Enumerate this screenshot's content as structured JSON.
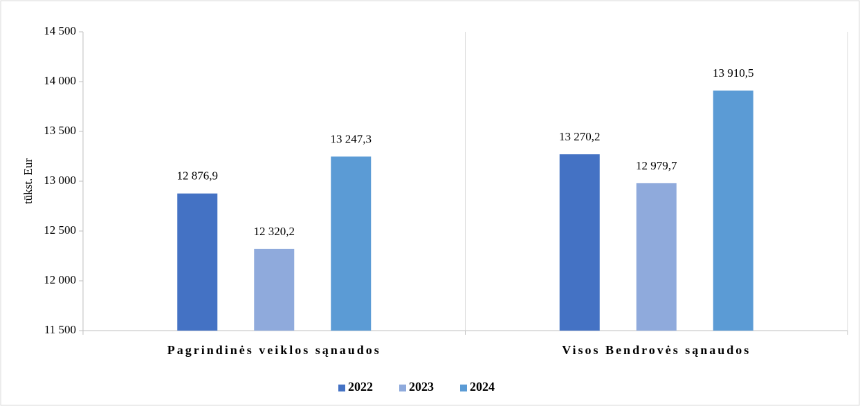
{
  "chart_data": {
    "type": "bar",
    "y_label": "tūkst. Eur",
    "categories": [
      "Pagrindinės veiklos sąnaudos",
      "Visos Bendrovės sąnaudos"
    ],
    "series": [
      {
        "name": "2022",
        "color": "#4472c4",
        "values": [
          12876.9,
          13270.2
        ],
        "value_labels": [
          "12 876,9",
          "13 270,2"
        ]
      },
      {
        "name": "2023",
        "color": "#8faadc",
        "values": [
          12320.2,
          12979.7
        ],
        "value_labels": [
          "12 320,2",
          "12 979,7"
        ]
      },
      {
        "name": "2024",
        "color": "#5b9bd5",
        "values": [
          13247.3,
          13910.5
        ],
        "value_labels": [
          "13 247,3",
          "13 910,5"
        ]
      }
    ],
    "ylim": [
      11500,
      14500
    ],
    "yticks": [
      {
        "value": 11500,
        "label": "11 500"
      },
      {
        "value": 12000,
        "label": "12 000"
      },
      {
        "value": 12500,
        "label": "12 500"
      },
      {
        "value": 13000,
        "label": "13 000"
      },
      {
        "value": 13500,
        "label": "13 500"
      },
      {
        "value": 14000,
        "label": "14 000"
      },
      {
        "value": 14500,
        "label": "14 500"
      }
    ],
    "legend": "bottom"
  }
}
